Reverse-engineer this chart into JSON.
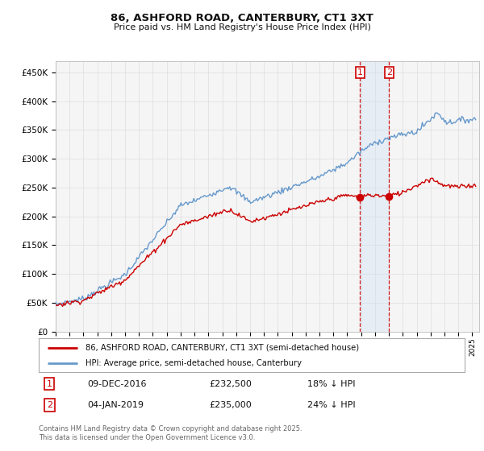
{
  "title_line1": "86, ASHFORD ROAD, CANTERBURY, CT1 3XT",
  "title_line2": "Price paid vs. HM Land Registry's House Price Index (HPI)",
  "ylabel_ticks": [
    "£0",
    "£50K",
    "£100K",
    "£150K",
    "£200K",
    "£250K",
    "£300K",
    "£350K",
    "£400K",
    "£450K"
  ],
  "ytick_values": [
    0,
    50000,
    100000,
    150000,
    200000,
    250000,
    300000,
    350000,
    400000,
    450000
  ],
  "ylim": [
    0,
    470000
  ],
  "xlim_start": 1995.0,
  "xlim_end": 2025.5,
  "hpi_color": "#6699cc",
  "price_color": "#cc0000",
  "dashed_line_color": "#cc0000",
  "marker1_x": 2016.93,
  "marker1_y": 232500,
  "marker2_x": 2019.02,
  "marker2_y": 235000,
  "sale1_date": "09-DEC-2016",
  "sale1_price": "£232,500",
  "sale1_hpi": "18% ↓ HPI",
  "sale2_date": "04-JAN-2019",
  "sale2_price": "£235,000",
  "sale2_hpi": "24% ↓ HPI",
  "legend_label1": "86, ASHFORD ROAD, CANTERBURY, CT1 3XT (semi-detached house)",
  "legend_label2": "HPI: Average price, semi-detached house, Canterbury",
  "footer": "Contains HM Land Registry data © Crown copyright and database right 2025.\nThis data is licensed under the Open Government Licence v3.0.",
  "bg_color": "#ffffff",
  "plot_bg_color": "#f5f5f5",
  "grid_color": "#dddddd",
  "highlight_color": "#cce0f5"
}
